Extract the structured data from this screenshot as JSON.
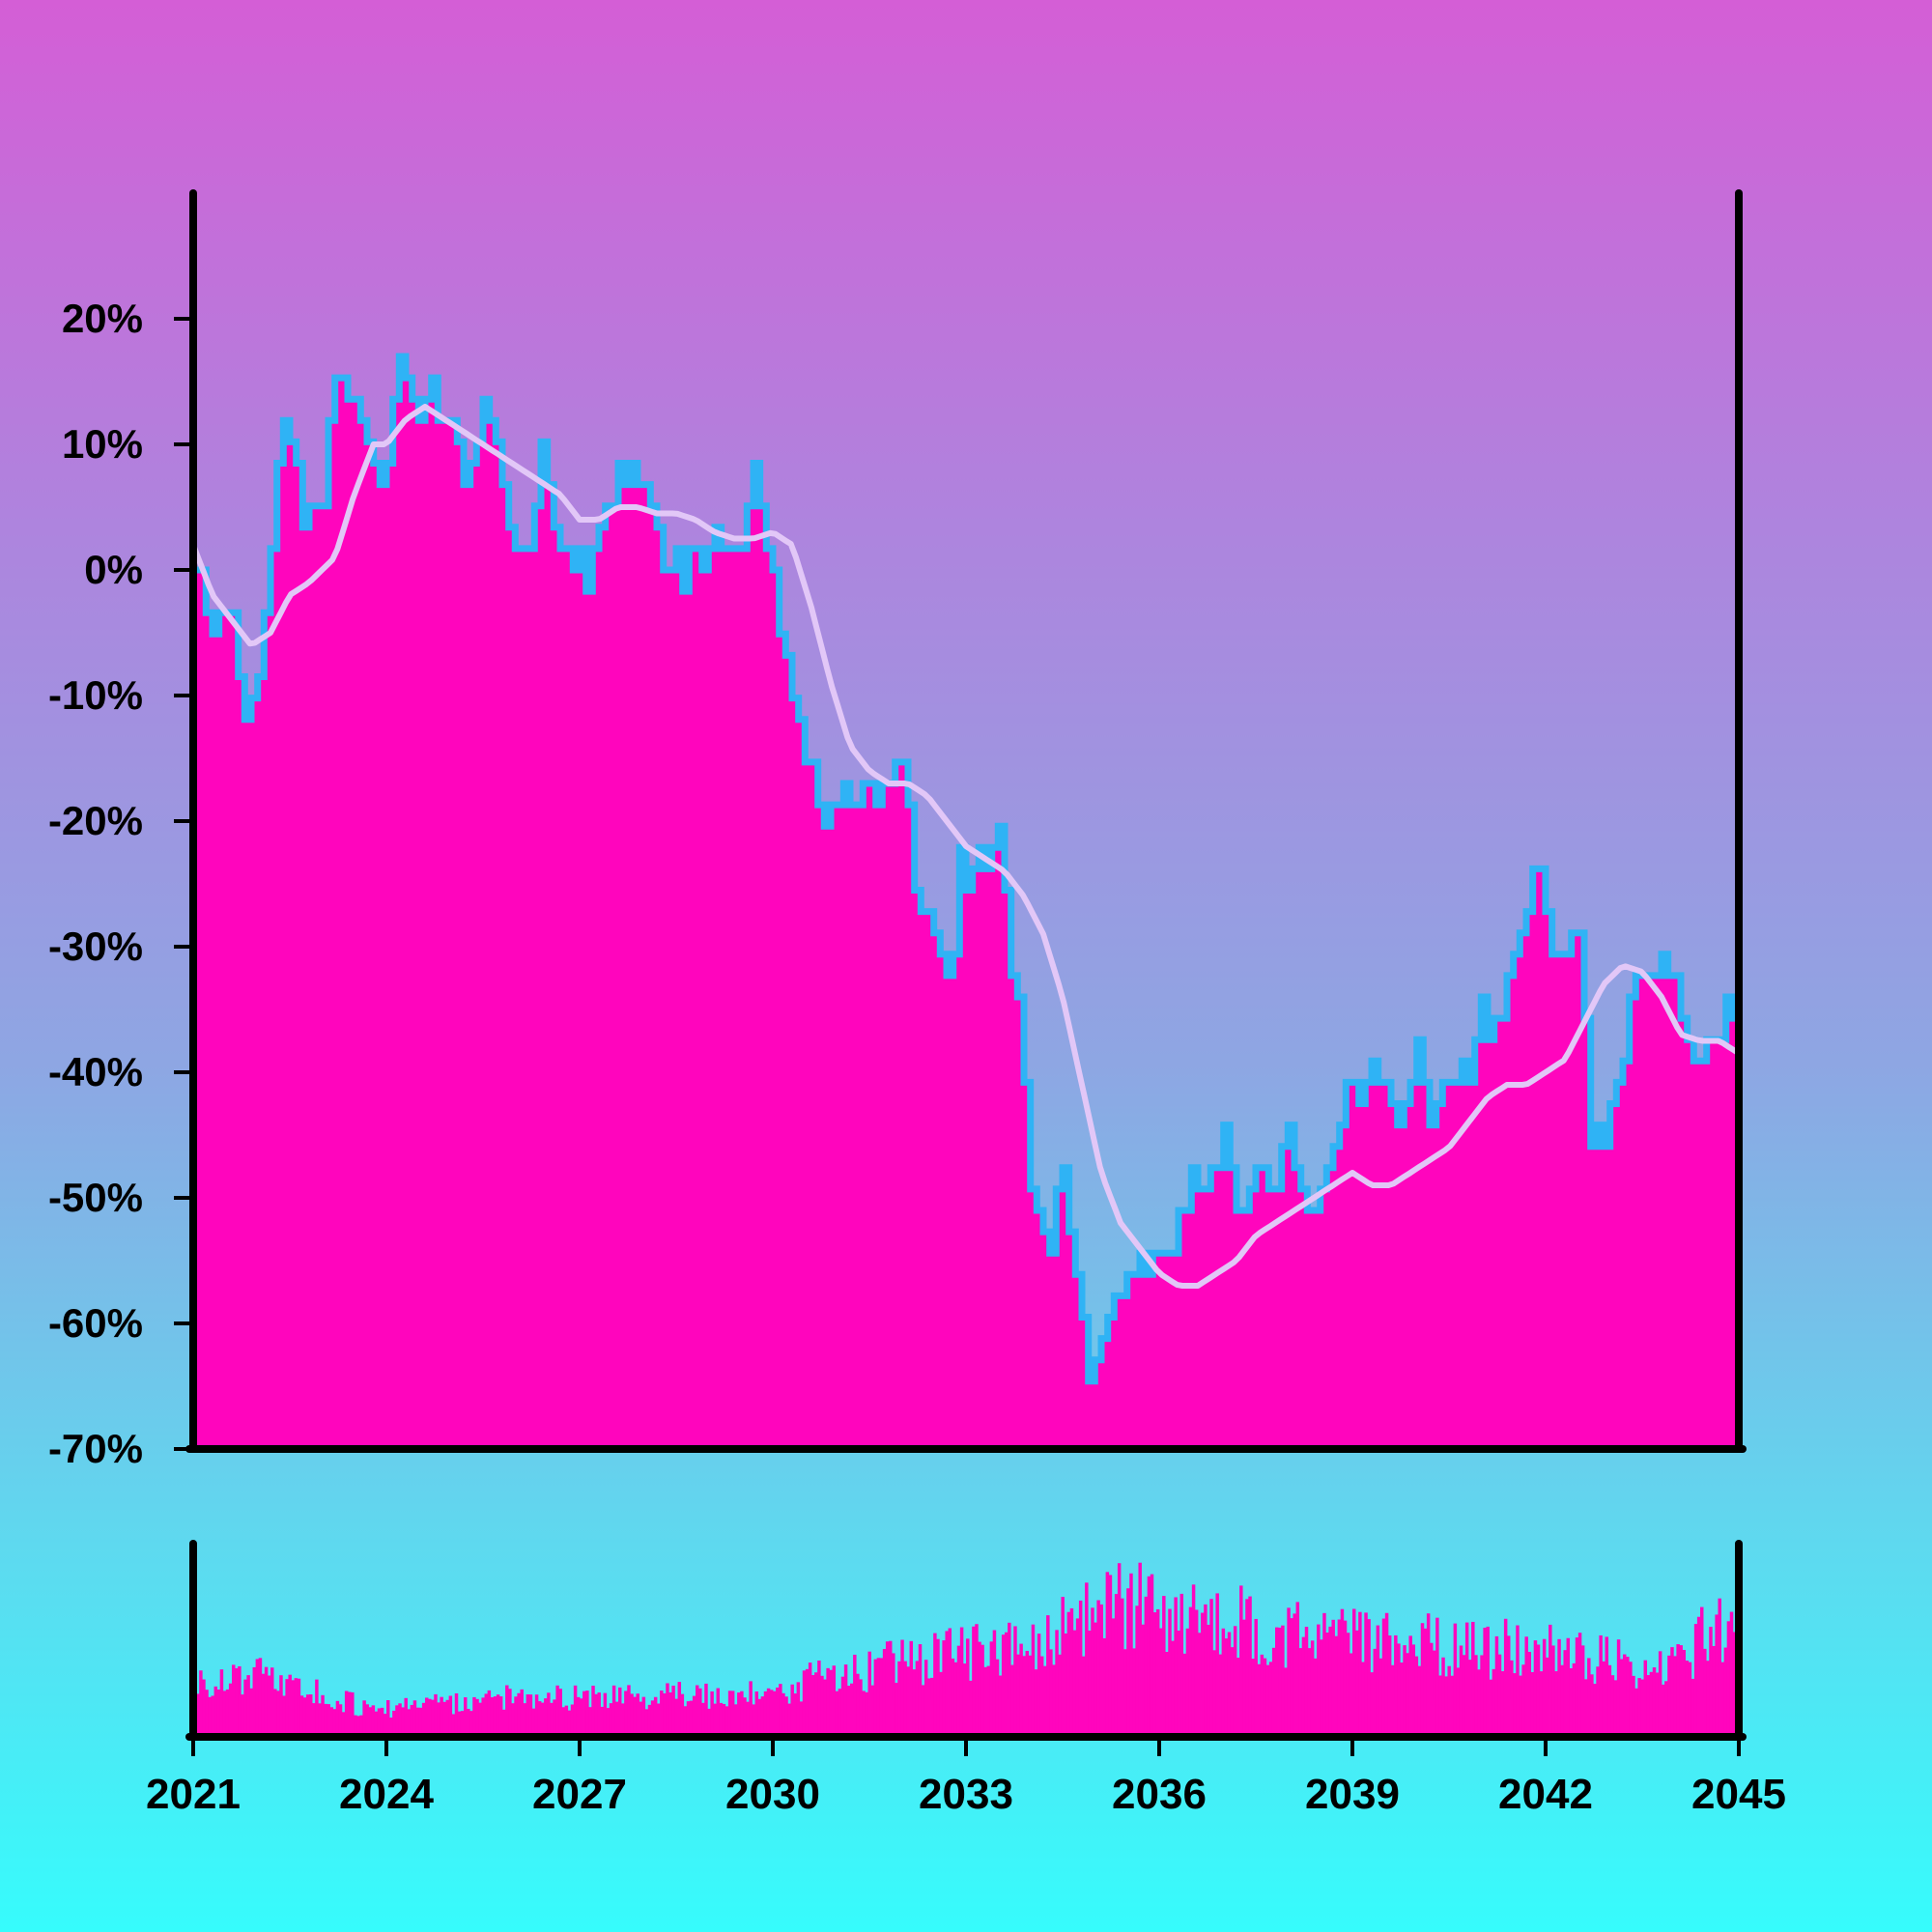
{
  "colors": {
    "area_fill": "#ff05bd",
    "area_edge": "#2fb3f5",
    "smooth_line": "#e2c7f7",
    "volume_fill": "#ff05bd",
    "axis": "#000000",
    "background_top": "#d45ed6",
    "background_bottom": "#36fcfc"
  },
  "chart_data": [
    {
      "type": "area",
      "title": "",
      "xlabel": "",
      "ylabel": "",
      "x_range": [
        2021.0,
        2045.0
      ],
      "ylim": [
        -70,
        30
      ],
      "y_ticks": [
        20,
        10,
        0,
        -10,
        -20,
        -30,
        -40,
        -50,
        -60,
        -70
      ],
      "y_tick_labels": [
        "20%",
        "10%",
        "0%",
        "-10%",
        "-20%",
        "-30%",
        "-40%",
        "-50%",
        "-60%",
        "-70%"
      ],
      "grid": false,
      "legend": "none",
      "series": [
        {
          "style": "stepped area",
          "x": [
            2021.0,
            2021.3,
            2021.55,
            2021.75,
            2022.0,
            2022.2,
            2022.4,
            2022.7,
            2022.85,
            2023.0,
            2023.15,
            2023.3,
            2023.5,
            2023.7,
            2024.0,
            2024.2,
            2024.5,
            2024.7,
            2025.0,
            2025.2,
            2025.5,
            2025.8,
            2026.0,
            2026.2,
            2026.4,
            2026.6,
            2026.9,
            2027.1,
            2027.3,
            2027.6,
            2027.8,
            2028.0,
            2028.3,
            2028.6,
            2028.8,
            2029.0,
            2029.2,
            2029.5,
            2029.7,
            2029.9,
            2030.1,
            2030.3,
            2030.5,
            2030.8,
            2031.0,
            2031.3,
            2031.6,
            2031.8,
            2032.0,
            2032.2,
            2032.5,
            2032.7,
            2032.9,
            2033.1,
            2033.3,
            2033.5,
            2033.7,
            2033.85,
            2034.0,
            2034.3,
            2034.5,
            2034.7,
            2034.9,
            2035.1,
            2035.3,
            2035.5,
            2035.7,
            2036.0,
            2036.3,
            2036.6,
            2037.0,
            2037.3,
            2037.5,
            2037.8,
            2038.0,
            2038.3,
            2038.6,
            2038.9,
            2039.1,
            2039.4,
            2039.7,
            2040.0,
            2040.2,
            2040.5,
            2040.8,
            2041.0,
            2041.3,
            2041.6,
            2041.9,
            2042.1,
            2042.3,
            2042.5,
            2042.7,
            2042.9,
            2043.1,
            2043.4,
            2043.6,
            2043.9,
            2044.1,
            2044.4,
            2044.6,
            2044.8,
            2045.0
          ],
          "values": [
            0,
            -6,
            -3,
            -11,
            -9,
            3,
            13,
            2,
            5,
            3,
            14,
            16,
            15,
            13,
            6,
            17,
            11,
            13,
            12,
            8,
            13,
            7,
            1,
            2,
            11,
            4,
            2,
            -1,
            3,
            7,
            10,
            8,
            2,
            -1,
            1,
            0,
            4,
            3,
            10,
            2,
            -5,
            -12,
            -16,
            -18,
            -17,
            -16,
            -20,
            -18,
            -16,
            -24,
            -27,
            -33,
            -25,
            -26,
            -24,
            -21,
            -31,
            -35,
            -48,
            -53,
            -49,
            -57,
            -65,
            -61,
            -57,
            -56,
            -55,
            -56,
            -53,
            -49,
            -45,
            -51,
            -49,
            -51,
            -44,
            -51,
            -47,
            -42,
            -44,
            -40,
            -43,
            -36,
            -44,
            -42,
            -41,
            -36,
            -34,
            -28,
            -25,
            -31,
            -32,
            -30,
            -43,
            -44,
            -40,
            -33,
            -32,
            -33,
            -35,
            -38,
            -36,
            -35,
            -38
          ]
        },
        {
          "style": "smoothed line",
          "x": [
            2021.0,
            2021.3,
            2021.6,
            2021.9,
            2022.2,
            2022.5,
            2022.8,
            2023.0,
            2023.2,
            2023.5,
            2023.8,
            2024.0,
            2024.3,
            2024.6,
            2024.9,
            2025.2,
            2025.5,
            2025.8,
            2026.1,
            2026.4,
            2026.7,
            2027.0,
            2027.3,
            2027.6,
            2027.9,
            2028.2,
            2028.5,
            2028.8,
            2029.1,
            2029.4,
            2029.7,
            2030.0,
            2030.3,
            2030.6,
            2030.9,
            2031.2,
            2031.5,
            2031.8,
            2032.1,
            2032.4,
            2032.7,
            2033.0,
            2033.3,
            2033.6,
            2033.9,
            2034.2,
            2034.5,
            2034.8,
            2035.1,
            2035.4,
            2035.7,
            2036.0,
            2036.3,
            2036.6,
            2036.9,
            2037.2,
            2037.5,
            2037.8,
            2038.1,
            2038.4,
            2038.7,
            2039.0,
            2039.3,
            2039.6,
            2039.9,
            2040.2,
            2040.5,
            2040.8,
            2041.1,
            2041.4,
            2041.7,
            2042.0,
            2042.3,
            2042.6,
            2042.9,
            2043.2,
            2043.5,
            2043.8,
            2044.1,
            2044.4,
            2044.7,
            2045.0
          ],
          "values": [
            2,
            -2,
            -4,
            -6,
            -5,
            -2,
            -1,
            0,
            1,
            6,
            10,
            10,
            12,
            13,
            12,
            11,
            10,
            9,
            8,
            7,
            6,
            4,
            4,
            5,
            5,
            4.5,
            4.5,
            4,
            3,
            2.5,
            2.5,
            3,
            2,
            -3,
            -9,
            -14,
            -16,
            -17,
            -17,
            -18,
            -20,
            -22,
            -23,
            -24,
            -26,
            -29,
            -34,
            -41,
            -48,
            -52,
            -54,
            -56,
            -57,
            -57,
            -56,
            -55,
            -53,
            -52,
            -51,
            -50,
            -49,
            -48,
            -49,
            -49,
            -48,
            -47,
            -46,
            -44,
            -42,
            -41,
            -41,
            -40,
            -39,
            -36,
            -33,
            -31.5,
            -32,
            -34,
            -37,
            -37.5,
            -37.5,
            -38.5
          ]
        }
      ]
    },
    {
      "type": "bar",
      "title": "",
      "xlabel": "",
      "ylabel": "",
      "x_range": [
        2021.0,
        2045.0
      ],
      "x_ticks": [
        2021,
        2024,
        2027,
        2030,
        2033,
        2036,
        2039,
        2042,
        2045
      ],
      "x_tick_labels": [
        "2021",
        "2024",
        "2027",
        "2030",
        "2033",
        "2036",
        "2039",
        "2042",
        "2045"
      ],
      "bar_count": 520,
      "envelope_x": [
        2021.0,
        2021.5,
        2022.0,
        2022.5,
        2023.0,
        2023.5,
        2024.0,
        2025.0,
        2026.0,
        2027.0,
        2028.0,
        2029.0,
        2030.0,
        2030.5,
        2031.0,
        2031.5,
        2032.0,
        2032.5,
        2033.0,
        2033.5,
        2034.0,
        2034.5,
        2035.0,
        2035.5,
        2036.0,
        2036.5,
        2037.0,
        2037.5,
        2038.0,
        2038.5,
        2039.0,
        2039.5,
        2040.0,
        2040.5,
        2041.0,
        2041.5,
        2042.0,
        2042.5,
        2043.0,
        2043.5,
        2044.0,
        2044.5,
        2045.0
      ],
      "envelope_values": [
        0.35,
        0.34,
        0.38,
        0.3,
        0.26,
        0.2,
        0.17,
        0.2,
        0.24,
        0.24,
        0.26,
        0.25,
        0.28,
        0.34,
        0.38,
        0.42,
        0.44,
        0.47,
        0.52,
        0.57,
        0.58,
        0.66,
        0.74,
        0.8,
        0.78,
        0.76,
        0.73,
        0.68,
        0.62,
        0.58,
        0.58,
        0.59,
        0.57,
        0.56,
        0.54,
        0.53,
        0.51,
        0.49,
        0.46,
        0.4,
        0.44,
        0.62,
        0.66
      ],
      "ylim": [
        0,
        1
      ]
    }
  ]
}
